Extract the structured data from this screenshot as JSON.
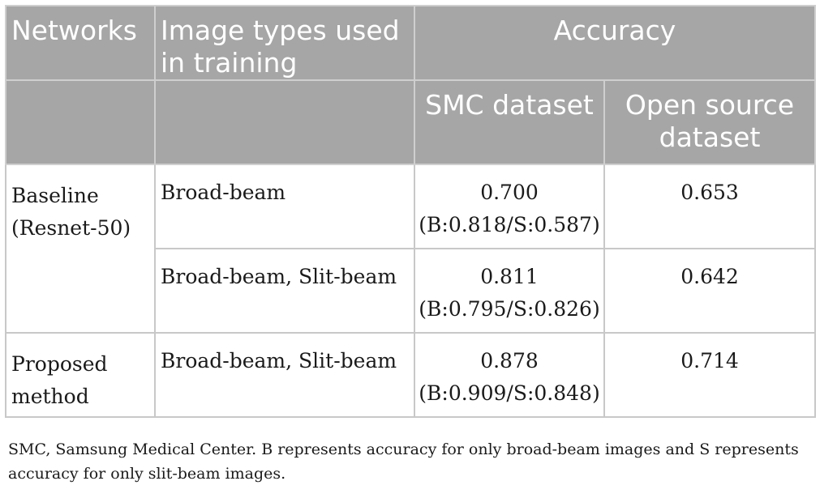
{
  "table": {
    "header": {
      "networks": "Networks",
      "image_types": "Image types used in training",
      "accuracy": "Accuracy",
      "smc": "SMC dataset",
      "open_source": "Open source dataset"
    },
    "rows": [
      {
        "network": "Baseline (Resnet-50)",
        "image_types": "Broad-beam",
        "smc_value": "0.700",
        "smc_detail": "(B:0.818/S:0.587)",
        "open_value": "0.653"
      },
      {
        "network": "",
        "image_types": "Broad-beam, Slit-beam",
        "smc_value": "0.811",
        "smc_detail": "(B:0.795/S:0.826)",
        "open_value": "0.642"
      },
      {
        "network": "Proposed method",
        "image_types": "Broad-beam, Slit-beam",
        "smc_value": "0.878",
        "smc_detail": "(B:0.909/S:0.848)",
        "open_value": "0.714"
      }
    ]
  },
  "footnote": "SMC, Samsung Medical Center. B represents accuracy for only broad-beam images and S represents accuracy for only slit-beam images."
}
